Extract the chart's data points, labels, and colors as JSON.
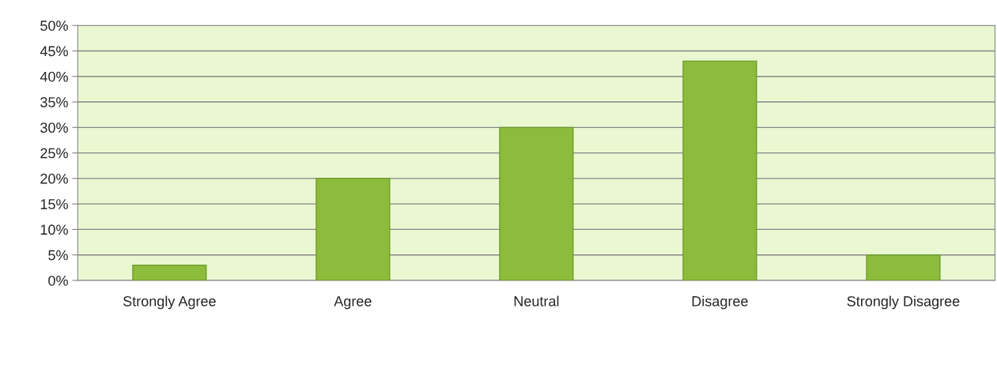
{
  "chart_data": {
    "type": "bar",
    "categories": [
      "Strongly Agree",
      "Agree",
      "Neutral",
      "Disagree",
      "Strongly Disagree"
    ],
    "values": [
      3,
      20,
      30,
      43,
      5
    ],
    "color": "#8dbb3c",
    "ylim": [
      0,
      50
    ],
    "yticks": [
      {
        "value": 0,
        "label": "0%"
      },
      {
        "value": 5,
        "label": "5%"
      },
      {
        "value": 10,
        "label": "10%"
      },
      {
        "value": 15,
        "label": "15%"
      },
      {
        "value": 20,
        "label": "20%"
      },
      {
        "value": 25,
        "label": "25%"
      },
      {
        "value": 30,
        "label": "30%"
      },
      {
        "value": 35,
        "label": "35%"
      },
      {
        "value": 40,
        "label": "40%"
      },
      {
        "value": 45,
        "label": "45%"
      },
      {
        "value": 50,
        "label": "50%"
      }
    ],
    "grid": "y"
  }
}
